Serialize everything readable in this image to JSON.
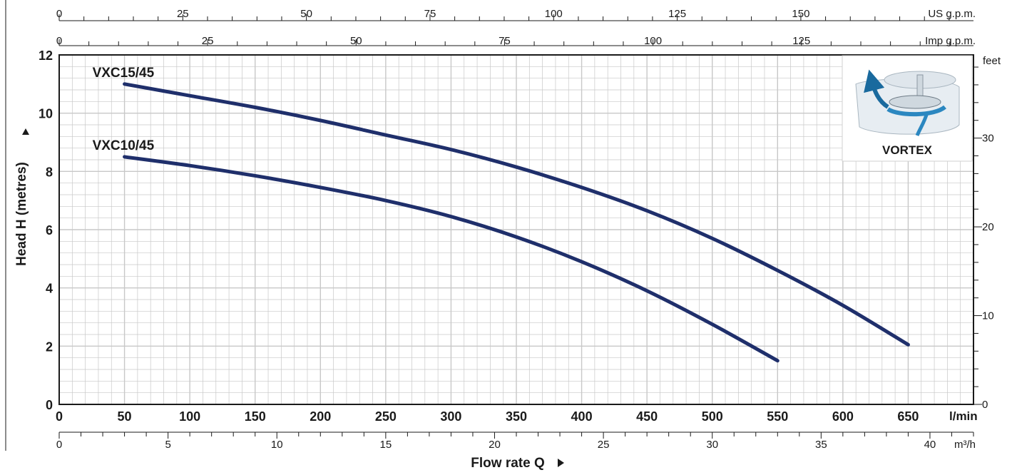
{
  "chart_data": {
    "type": "line",
    "ylabel": "Head H (metres)",
    "xlabel": "Flow rate Q",
    "x_unit": "l/min",
    "xlim": [
      0,
      700
    ],
    "ylim": [
      0,
      12
    ],
    "grid": true,
    "x_ticks": [
      0,
      50,
      100,
      150,
      200,
      250,
      300,
      350,
      400,
      450,
      500,
      550,
      600,
      650
    ],
    "y_ticks": [
      0,
      2,
      4,
      6,
      8,
      10,
      12
    ],
    "series": [
      {
        "name": "VXC15/45",
        "x": [
          50,
          100,
          150,
          200,
          250,
          300,
          350,
          400,
          450,
          500,
          550,
          600,
          650
        ],
        "y": [
          11.0,
          10.6,
          10.2,
          9.75,
          9.25,
          8.75,
          8.15,
          7.45,
          6.65,
          5.7,
          4.6,
          3.4,
          2.05
        ]
      },
      {
        "name": "VXC10/45",
        "x": [
          50,
          100,
          150,
          200,
          250,
          300,
          350,
          400,
          450,
          500,
          550
        ],
        "y": [
          8.5,
          8.2,
          7.85,
          7.45,
          7.0,
          6.45,
          5.75,
          4.9,
          3.9,
          2.75,
          1.5
        ]
      }
    ],
    "secondary_axes": {
      "us_gpm": {
        "label": "US g.p.m.",
        "ticks": [
          0,
          25,
          50,
          75,
          100,
          125,
          150
        ],
        "factor_per_lpm": 0.264172
      },
      "imp_gpm": {
        "label": "Imp g.p.m.",
        "ticks": [
          0,
          25,
          50,
          75,
          100,
          125
        ],
        "factor_per_lpm": 0.219969
      },
      "m3h": {
        "label": "m³/h",
        "ticks": [
          0,
          5,
          10,
          15,
          20,
          25,
          30,
          35,
          40
        ],
        "factor_per_lpm": 0.06
      },
      "feet": {
        "label": "feet",
        "ticks": [
          0,
          10,
          20,
          30
        ],
        "factor_per_m": 3.28084
      }
    },
    "line_color": "#1f2f6b",
    "grid_color": "#c8c8c8"
  },
  "inset": {
    "label": "VORTEX",
    "icon": "vortex-impeller-icon"
  }
}
